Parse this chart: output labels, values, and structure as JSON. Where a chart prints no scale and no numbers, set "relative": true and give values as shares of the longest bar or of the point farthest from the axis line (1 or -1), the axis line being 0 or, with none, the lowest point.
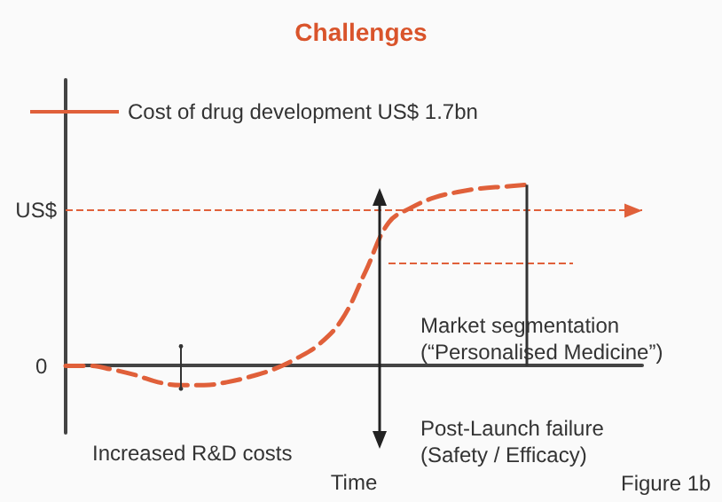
{
  "chart_data": {
    "type": "line",
    "title": "Challenges",
    "xlabel": "Time",
    "relative": true,
    "legend": "top left",
    "line_style": "dashed",
    "marker": "none",
    "categories": [
      null,
      null,
      null,
      null,
      null,
      null,
      null,
      null,
      null,
      null,
      null,
      null,
      null,
      null,
      null,
      null,
      null,
      null,
      null,
      null,
      null,
      null,
      null,
      null,
      null,
      null
    ],
    "series": [
      {
        "name": "Cost of drug development US$ 1.7bn",
        "color": "#e0603a",
        "values": [
          0,
          0,
          -0.02,
          -0.05,
          -0.09,
          -0.107,
          -0.107,
          -0.09,
          -0.06,
          -0.02,
          0.04,
          0.12,
          0.26,
          0.52,
          0.79,
          0.875,
          0.93,
          0.96,
          0.98,
          0.99,
          1.0,
          null,
          null,
          null,
          null,
          null
        ]
      }
    ],
    "ref_lines": [
      {
        "axis": "y",
        "value": 0.857,
        "label": "US$",
        "color": "#e0603a",
        "line_style": "dashed"
      },
      {
        "axis": "y",
        "value": 0.571,
        "label": null,
        "color": "#e0603a",
        "line_style": "dashed"
      }
    ],
    "annotations": [
      "0",
      "Increased R&D costs",
      "Market segmentation\n(“Personalised Medicine”)",
      "Post-Launch failure\n(Safety / Efficacy)",
      "Figure 1b"
    ]
  }
}
